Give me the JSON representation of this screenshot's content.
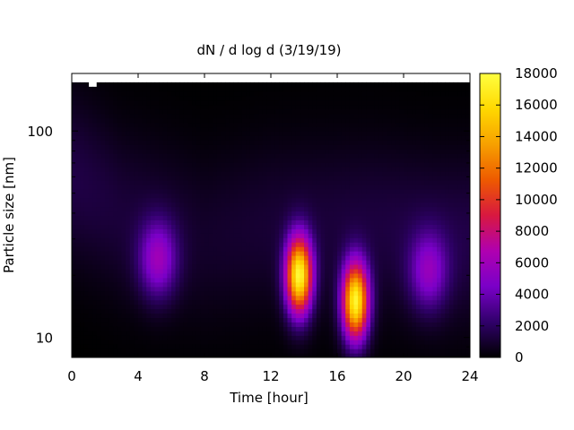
{
  "chart_data": {
    "type": "heatmap",
    "title": "dN / d log d (3/19/19)",
    "xlabel": "Time [hour]",
    "ylabel": "Particle size [nm]",
    "xlim": [
      0,
      24
    ],
    "ylim": [
      8,
      190
    ],
    "yscale": "log",
    "xticks": [
      0,
      4,
      8,
      12,
      16,
      20,
      24
    ],
    "yticks": [
      10,
      100
    ],
    "colorbar": {
      "range": [
        0,
        18000
      ],
      "ticks": [
        0,
        2000,
        4000,
        6000,
        8000,
        10000,
        12000,
        14000,
        16000,
        18000
      ],
      "colormap": [
        "#000000",
        "#30006a",
        "#7a00c8",
        "#b000b0",
        "#d81840",
        "#ee5a00",
        "#f7a000",
        "#ffd800",
        "#ffff40"
      ]
    },
    "data_upper_bound_nm": [
      [
        0,
        175
      ],
      [
        0.8,
        172
      ],
      [
        1.2,
        165
      ],
      [
        2,
        175
      ],
      [
        4,
        175
      ],
      [
        8,
        175
      ],
      [
        12,
        175
      ],
      [
        16,
        175
      ],
      [
        20,
        175
      ],
      [
        24,
        175
      ]
    ],
    "background_nm": [
      [
        0,
        60,
        1500
      ],
      [
        3,
        40,
        1200
      ],
      [
        8,
        30,
        900
      ],
      [
        12,
        35,
        1100
      ],
      [
        18,
        35,
        1300
      ],
      [
        22,
        30,
        1500
      ],
      [
        24,
        30,
        1500
      ]
    ],
    "features": [
      {
        "time_hour": 5.2,
        "diameter_nm": 24,
        "peak_dN_dlogd": 5200
      },
      {
        "time_hour": 13.7,
        "diameter_nm": 20,
        "peak_dN_dlogd": 17000
      },
      {
        "time_hour": 17.1,
        "diameter_nm": 15,
        "peak_dN_dlogd": 17000
      },
      {
        "time_hour": 21.5,
        "diameter_nm": 21,
        "peak_dN_dlogd": 4500
      }
    ]
  }
}
